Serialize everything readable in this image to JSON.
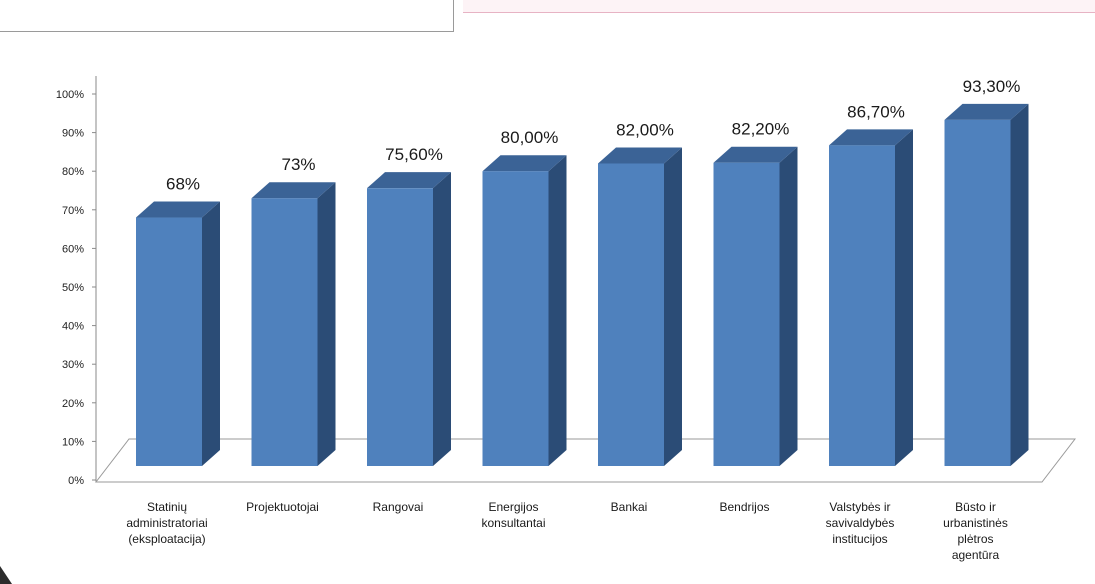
{
  "header_fragment": {
    "text": "▬▬▬▬▬▬▬   ▬▬▬▬▬▬"
  },
  "colors": {
    "bar_front": "#4f81bd",
    "bar_side": "#2b4c76",
    "bar_top": "#3b6396"
  },
  "chart_data": {
    "type": "bar",
    "title": "",
    "xlabel": "",
    "ylabel": "",
    "ylim": [
      0,
      100
    ],
    "yticks": [
      "0%",
      "10%",
      "20%",
      "30%",
      "40%",
      "50%",
      "60%",
      "70%",
      "80%",
      "90%",
      "100%"
    ],
    "categories": [
      [
        "Statinių",
        "administratoriai",
        "(eksploatacija)"
      ],
      [
        "Projektuotojai"
      ],
      [
        "Rangovai"
      ],
      [
        "Energijos",
        "konsultantai"
      ],
      [
        "Bankai"
      ],
      [
        "Bendrijos"
      ],
      [
        "Valstybės ir",
        "savivaldybės",
        "institucijos"
      ],
      [
        "Būsto ir",
        "urbanistinės",
        "plėtros",
        "agentūra"
      ]
    ],
    "values": [
      68,
      73,
      75.6,
      80,
      82,
      82.2,
      86.7,
      93.3
    ],
    "data_labels": [
      "68%",
      "73%",
      "75,60%",
      "80,00%",
      "82,00%",
      "82,20%",
      "86,70%",
      "93,30%"
    ],
    "grid": false,
    "legend": "none"
  }
}
